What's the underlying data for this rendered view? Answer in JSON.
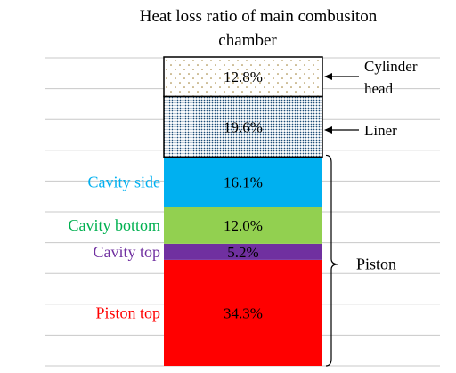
{
  "chart_data": {
    "type": "bar",
    "stacked": true,
    "title": "Heat loss ratio of main combusiton chamber",
    "title_lines": [
      "Heat loss ratio of main combusiton",
      "chamber"
    ],
    "unit": "%",
    "grid": true,
    "ylim": [
      0,
      100
    ],
    "segments": [
      {
        "key": "piston-top",
        "label": "Piston top",
        "value": 34.3,
        "value_label": "34.3%",
        "fill": "#ff0000",
        "label_color": "#ff0000",
        "pattern": "none"
      },
      {
        "key": "cavity-top",
        "label": "Cavity top",
        "value": 5.2,
        "value_label": "5.2%",
        "fill": "#7030a0",
        "label_color": "#7030a0",
        "pattern": "none"
      },
      {
        "key": "cavity-bottom",
        "label": "Cavity bottom",
        "value": 12.0,
        "value_label": "12.0%",
        "fill": "#92d050",
        "label_color": "#00b050",
        "pattern": "none"
      },
      {
        "key": "cavity-side",
        "label": "Cavity side",
        "value": 16.1,
        "value_label": "16.1%",
        "fill": "#00b0f0",
        "label_color": "#00b0f0",
        "pattern": "none"
      },
      {
        "key": "liner",
        "label": "Liner",
        "value": 19.6,
        "value_label": "19.6%",
        "fill": "#ffffff",
        "label_color": "#000000",
        "pattern": "dense-dots"
      },
      {
        "key": "cylinder-head",
        "label": "Cylinder head",
        "label_lines": [
          "Cylinder",
          "head"
        ],
        "value": 12.8,
        "value_label": "12.8%",
        "fill": "#ffffff",
        "label_color": "#000000",
        "pattern": "sparse-dots"
      }
    ],
    "group_annotation": {
      "label": "Piston",
      "spans": [
        "piston-top",
        "cavity-top",
        "cavity-bottom",
        "cavity-side"
      ]
    },
    "colors": {
      "grid": "#c8c8c8",
      "dense_dot": "#1f4e79",
      "sparse_dot": "#9c7a2b",
      "text": "#000000"
    }
  }
}
